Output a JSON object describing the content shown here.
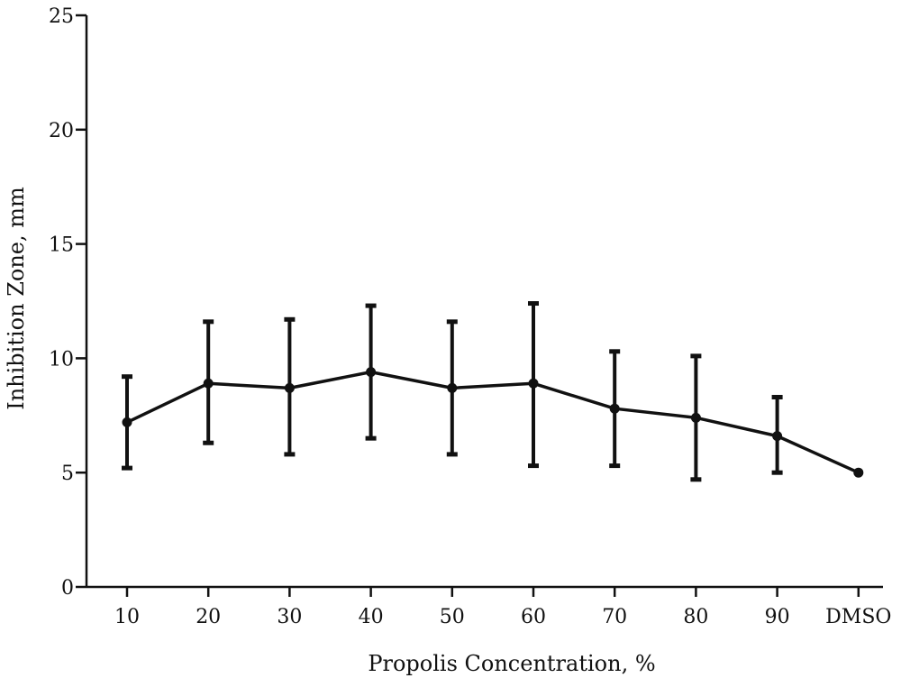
{
  "chart_data": {
    "type": "line",
    "title": "",
    "xlabel": "Propolis Concentration, %",
    "ylabel": "Inhibition Zone, mm",
    "ylim": [
      0,
      25
    ],
    "yticks": [
      0,
      5,
      10,
      15,
      20,
      25
    ],
    "grid": false,
    "legend": "none",
    "categories": [
      "10",
      "20",
      "30",
      "40",
      "50",
      "60",
      "70",
      "80",
      "90",
      "DMSO"
    ],
    "series": [
      {
        "values": [
          7.2,
          8.9,
          8.7,
          9.4,
          8.7,
          8.9,
          7.8,
          7.4,
          6.6,
          5.0
        ],
        "error_upper": [
          9.2,
          11.6,
          11.7,
          12.3,
          11.6,
          12.4,
          10.3,
          10.1,
          8.3,
          5.0
        ],
        "error_lower": [
          5.2,
          6.3,
          5.8,
          6.5,
          5.8,
          5.3,
          5.3,
          4.7,
          5.0,
          5.0
        ]
      }
    ],
    "colors": {
      "line": "#111111",
      "axis": "#111111"
    }
  }
}
